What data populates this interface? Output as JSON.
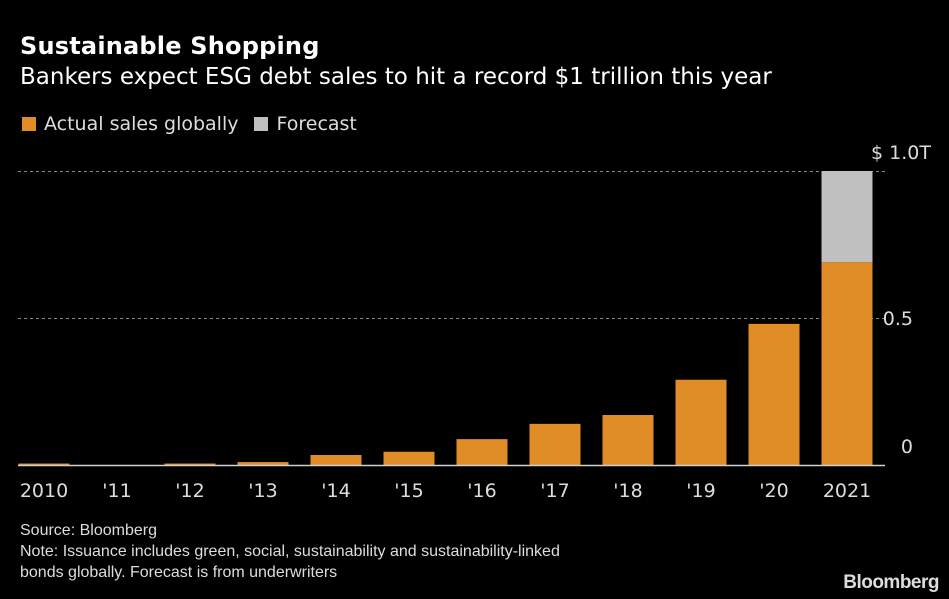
{
  "header": {
    "title": "Sustainable Shopping",
    "subtitle": "Bankers expect ESG debt sales to hit a record $1 trillion this year"
  },
  "legend": [
    {
      "label": "Actual sales globally",
      "color": "#e08d27"
    },
    {
      "label": "Forecast",
      "color": "#c0c0c0"
    }
  ],
  "chart_data": {
    "type": "bar",
    "stacked": true,
    "title": "Sustainable Shopping",
    "subtitle": "Bankers expect ESG debt sales to hit a record $1 trillion this year",
    "xlabel": "",
    "ylabel": "",
    "unit": "USD trillions",
    "categories": [
      "2010",
      "'11",
      "'12",
      "'13",
      "'14",
      "'15",
      "'16",
      "'17",
      "'18",
      "'19",
      "'20",
      "2021"
    ],
    "series": [
      {
        "name": "Actual sales globally",
        "color": "#e08d27",
        "values": [
          0.005,
          0.0,
          0.005,
          0.01,
          0.034,
          0.045,
          0.088,
          0.14,
          0.17,
          0.29,
          0.48,
          0.69
        ]
      },
      {
        "name": "Forecast",
        "color": "#c0c0c0",
        "values": [
          0,
          0,
          0,
          0,
          0,
          0,
          0,
          0,
          0,
          0,
          0,
          0.31
        ]
      }
    ],
    "ylim": [
      0,
      1.0
    ],
    "yticks": [
      {
        "value": 0,
        "label": "0"
      },
      {
        "value": 0.5,
        "label": "0.5"
      },
      {
        "value": 1.0,
        "label": "$ 1.0T"
      }
    ],
    "grid": true,
    "y_axis_position": "right",
    "legend_position": "top-left"
  },
  "footer": {
    "source": "Source: Bloomberg",
    "note_line1": "Note: Issuance includes green, social, sustainability and sustainability-linked",
    "note_line2": "bonds globally. Forecast is from underwriters",
    "brand": "Bloomberg"
  }
}
